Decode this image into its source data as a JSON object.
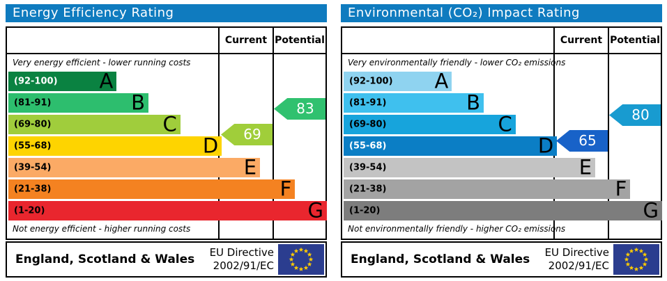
{
  "colors": {
    "title_bar": "#0f7bbf",
    "flag_blue": "#2b3d8f",
    "flag_star": "#ffcc00"
  },
  "panels": [
    {
      "title": "Energy Efficiency Rating",
      "header": {
        "current": "Current",
        "potential": "Potential"
      },
      "captions": {
        "top": "Very energy efficient - lower running costs",
        "bottom": "Not energy efficient - higher running costs"
      },
      "bands": [
        {
          "letter": "A",
          "label": "(92-100)",
          "min": 92,
          "max": 100,
          "color": "#0a8241",
          "text_color": "#ffffff",
          "width": "34%"
        },
        {
          "letter": "B",
          "label": "(81-91)",
          "min": 81,
          "max": 91,
          "color": "#2dbe6e",
          "text_color": "#000000",
          "width": "44%"
        },
        {
          "letter": "C",
          "label": "(69-80)",
          "min": 69,
          "max": 80,
          "color": "#a0cd3c",
          "text_color": "#000000",
          "width": "54%"
        },
        {
          "letter": "D",
          "label": "(55-68)",
          "min": 55,
          "max": 68,
          "color": "#fed400",
          "text_color": "#000000",
          "width": "67%"
        },
        {
          "letter": "E",
          "label": "(39-54)",
          "min": 39,
          "max": 54,
          "color": "#fbaa65",
          "text_color": "#000000",
          "width": "79%"
        },
        {
          "letter": "F",
          "label": "(21-38)",
          "min": 21,
          "max": 38,
          "color": "#f48221",
          "text_color": "#000000",
          "width": "90%"
        },
        {
          "letter": "G",
          "label": "(1-20)",
          "min": 1,
          "max": 20,
          "color": "#e9262e",
          "text_color": "#000000",
          "width": "100%"
        }
      ],
      "current": {
        "value": 69,
        "color": "#a0ce3a"
      },
      "potential": {
        "value": 83,
        "color": "#30c16f"
      },
      "footer": {
        "region": "England, Scotland & Wales",
        "directive1": "EU Directive",
        "directive2": "2002/91/EC"
      }
    },
    {
      "title": "Environmental (CO₂) Impact Rating",
      "header": {
        "current": "Current",
        "potential": "Potential"
      },
      "captions": {
        "top": "Very environmentally friendly - lower CO₂ emissions",
        "bottom": "Not environmentally friendly - higher CO₂ emissions"
      },
      "bands": [
        {
          "letter": "A",
          "label": "(92-100)",
          "min": 92,
          "max": 100,
          "color": "#8fd3f0",
          "text_color": "#000000",
          "width": "34%"
        },
        {
          "letter": "B",
          "label": "(81-91)",
          "min": 81,
          "max": 91,
          "color": "#3fc0ee",
          "text_color": "#000000",
          "width": "44%"
        },
        {
          "letter": "C",
          "label": "(69-80)",
          "min": 69,
          "max": 80,
          "color": "#17a4dc",
          "text_color": "#000000",
          "width": "54%"
        },
        {
          "letter": "D",
          "label": "(55-68)",
          "min": 55,
          "max": 68,
          "color": "#0b7ec5",
          "text_color": "#ffffff",
          "width": "67%"
        },
        {
          "letter": "E",
          "label": "(39-54)",
          "min": 39,
          "max": 54,
          "color": "#c3c3c3",
          "text_color": "#000000",
          "width": "79%"
        },
        {
          "letter": "F",
          "label": "(21-38)",
          "min": 21,
          "max": 38,
          "color": "#a3a3a3",
          "text_color": "#000000",
          "width": "90%"
        },
        {
          "letter": "G",
          "label": "(1-20)",
          "min": 1,
          "max": 20,
          "color": "#7d7d7d",
          "text_color": "#000000",
          "width": "100%"
        }
      ],
      "current": {
        "value": 65,
        "color": "#1862c8"
      },
      "potential": {
        "value": 80,
        "color": "#189bd0"
      },
      "footer": {
        "region": "England, Scotland & Wales",
        "directive1": "EU Directive",
        "directive2": "2002/91/EC"
      }
    }
  ],
  "chart_data": [
    {
      "type": "bar",
      "orientation": "horizontal",
      "title": "Energy Efficiency Rating",
      "categories": [
        "A (92-100)",
        "B (81-91)",
        "C (69-80)",
        "D (55-68)",
        "E (39-54)",
        "F (21-38)",
        "G (1-20)"
      ],
      "values": [
        34,
        44,
        54,
        67,
        79,
        90,
        100
      ],
      "annotations": {
        "current": 69,
        "current_band": "C",
        "potential": 83,
        "potential_band": "B"
      },
      "notes_top": "Very energy efficient - lower running costs",
      "notes_bottom": "Not energy efficient - higher running costs"
    },
    {
      "type": "bar",
      "orientation": "horizontal",
      "title": "Environmental (CO₂) Impact Rating",
      "categories": [
        "A (92-100)",
        "B (81-91)",
        "C (69-80)",
        "D (55-68)",
        "E (39-54)",
        "F (21-38)",
        "G (1-20)"
      ],
      "values": [
        34,
        44,
        54,
        67,
        79,
        90,
        100
      ],
      "annotations": {
        "current": 65,
        "current_band": "D",
        "potential": 80,
        "potential_band": "C"
      },
      "notes_top": "Very environmentally friendly - lower CO₂ emissions",
      "notes_bottom": "Not environmentally friendly - higher CO₂ emissions"
    }
  ]
}
